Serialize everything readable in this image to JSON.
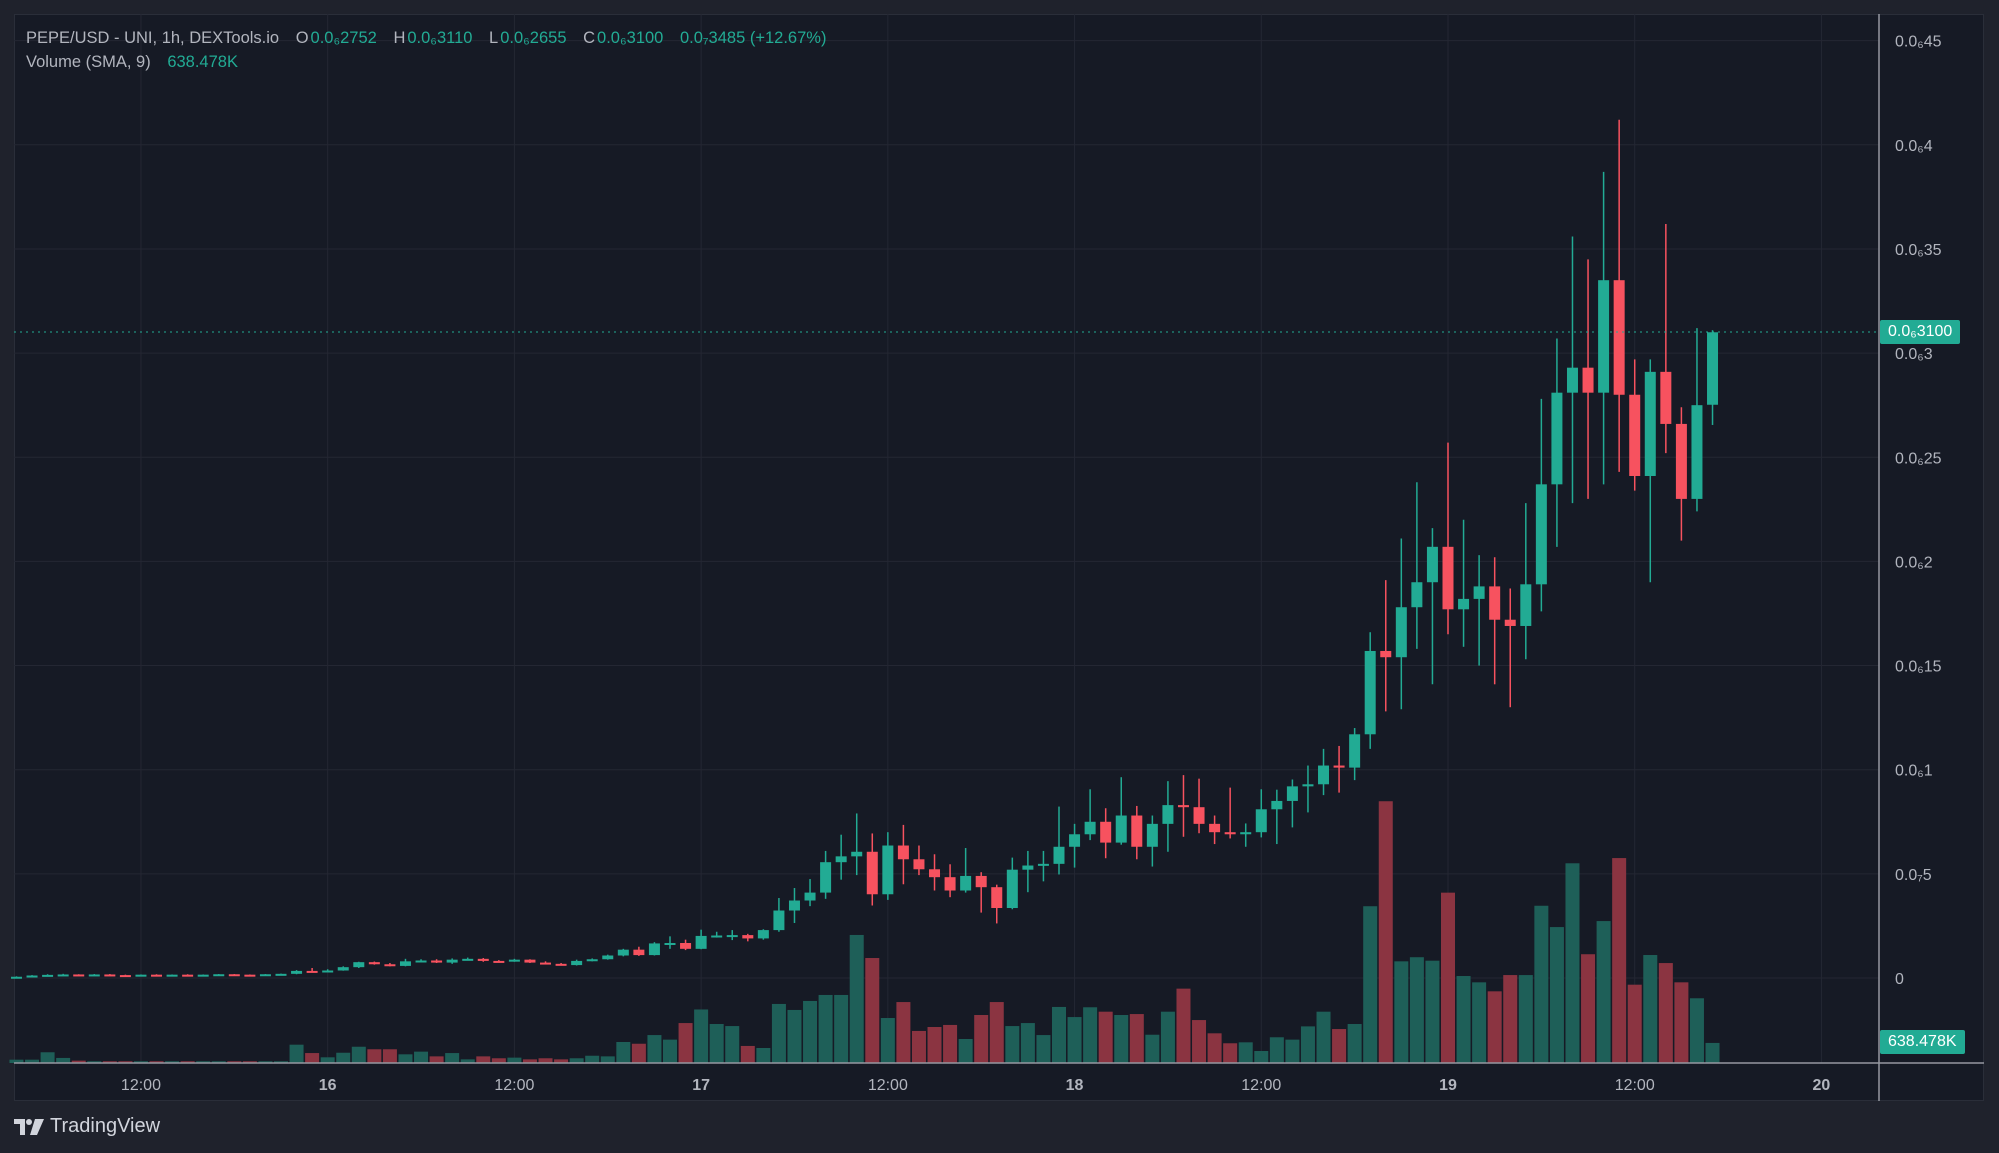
{
  "legend": {
    "symbol": "PEPE/USD - UNI, 1h, DEXTools.io",
    "open_label": "O",
    "open": "0.0₆2752",
    "high_label": "H",
    "high": "0.0₆3110",
    "low_label": "L",
    "low": "0.0₆2655",
    "close_label": "C",
    "close": "0.0₆3100",
    "change": "0.0₇3485 (+12.67%)",
    "volume_label": "Volume (SMA, 9)",
    "volume_value": "638.478K"
  },
  "last_price_tag": "0.0₆3100",
  "volume_tag": "638.478K",
  "brand": "TradingView",
  "colors": {
    "up": "#22ab94",
    "down": "#f7525f",
    "volume_up": "#1e5f58",
    "volume_down": "#8b3441",
    "grid": "#242733",
    "text": "#b2b5be"
  },
  "chart_data": {
    "type": "candlestick",
    "title": "PEPE/USD - UNI, 1h, DEXTools.io",
    "interval": "1h",
    "first_bar": "15 04:00",
    "y_ticks": [
      {
        "label": "0",
        "value": 0
      },
      {
        "label": "0.0₇5",
        "value": 5e-08
      },
      {
        "label": "0.0₆1",
        "value": 1e-07
      },
      {
        "label": "0.0₆15",
        "value": 1.5e-07
      },
      {
        "label": "0.0₆2",
        "value": 2e-07
      },
      {
        "label": "0.0₆25",
        "value": 2.5e-07
      },
      {
        "label": "0.0₆3",
        "value": 3e-07
      },
      {
        "label": "0.0₆35",
        "value": 3.5e-07
      },
      {
        "label": "0.0₆4",
        "value": 4e-07
      },
      {
        "label": "0.0₆45",
        "value": 4.5e-07
      }
    ],
    "x_ticks": [
      {
        "label": "12:00",
        "hour": 12,
        "bold": false
      },
      {
        "label": "16",
        "hour": 24,
        "bold": true
      },
      {
        "label": "12:00",
        "hour": 36,
        "bold": false
      },
      {
        "label": "17",
        "hour": 48,
        "bold": true
      },
      {
        "label": "12:00",
        "hour": 60,
        "bold": false
      },
      {
        "label": "18",
        "hour": 72,
        "bold": true
      },
      {
        "label": "12:00",
        "hour": 84,
        "bold": false
      },
      {
        "label": "19",
        "hour": 96,
        "bold": true
      },
      {
        "label": "12:00",
        "hour": 108,
        "bold": false
      },
      {
        "label": "20",
        "hour": 120,
        "bold": true
      }
    ],
    "last_price": 3.1e-07,
    "volume_sma9_k": 638.478,
    "ohlc": [
      [
        4e-10,
        8e-10,
        3e-10,
        6e-10
      ],
      [
        6e-10,
        1.4e-09,
        5e-10,
        1.2e-09
      ],
      [
        1.2e-09,
        1.8e-09,
        1.1e-09,
        1.5e-09
      ],
      [
        1.5e-09,
        2e-09,
        1.3e-09,
        1.7e-09
      ],
      [
        1.7e-09,
        1.8e-09,
        1.3e-09,
        1.4e-09
      ],
      [
        1.4e-09,
        1.9e-09,
        1.3e-09,
        1.7e-09
      ],
      [
        1.7e-09,
        1.9e-09,
        1.3e-09,
        1.4e-09
      ],
      [
        1.4e-09,
        1.6e-09,
        1.1e-09,
        1.2e-09
      ],
      [
        1.2e-09,
        1.7e-09,
        1.1e-09,
        1.6e-09
      ],
      [
        1.6e-09,
        1.8e-09,
        1.2e-09,
        1.3e-09
      ],
      [
        1.3e-09,
        1.7e-09,
        1.1e-09,
        1.6e-09
      ],
      [
        1.6e-09,
        1.8e-09,
        1.2e-09,
        1.3e-09
      ],
      [
        1.3e-09,
        1.7e-09,
        1.2e-09,
        1.6e-09
      ],
      [
        1.6e-09,
        1.9e-09,
        1.4e-09,
        1.8e-09
      ],
      [
        1.8e-09,
        1.9e-09,
        1.5e-09,
        1.6e-09
      ],
      [
        1.6e-09,
        1.7e-09,
        1.4e-09,
        1.5e-09
      ],
      [
        1.5e-09,
        1.9e-09,
        1.4e-09,
        1.8e-09
      ],
      [
        1.8e-09,
        2.1e-09,
        1.7e-09,
        2e-09
      ],
      [
        2e-09,
        3.8e-09,
        1.8e-09,
        3.4e-09
      ],
      [
        3.4e-09,
        4.8e-09,
        3.1e-09,
        3.2e-09
      ],
      [
        3.2e-09,
        4.2e-09,
        2.8e-09,
        3.6e-09
      ],
      [
        3.6e-09,
        5.6e-09,
        3.5e-09,
        5.2e-09
      ],
      [
        5.2e-09,
        7.8e-09,
        4.8e-09,
        7.6e-09
      ],
      [
        7.6e-09,
        7.9e-09,
        6.4e-09,
        6.6e-09
      ],
      [
        6.6e-09,
        7.2e-09,
        5.6e-09,
        5.8e-09
      ],
      [
        5.8e-09,
        9.2e-09,
        5.6e-09,
        8e-09
      ],
      [
        8e-09,
        9e-09,
        7.6e-09,
        8.4e-09
      ],
      [
        8.4e-09,
        9e-09,
        7.2e-09,
        7.4e-09
      ],
      [
        7.4e-09,
        9.4e-09,
        6.8e-09,
        8.8e-09
      ],
      [
        8.8e-09,
        9.8e-09,
        8.4e-09,
        9.2e-09
      ],
      [
        9.2e-09,
        9.6e-09,
        7.8e-09,
        8.2e-09
      ],
      [
        8.2e-09,
        8.6e-09,
        7.6e-09,
        8e-09
      ],
      [
        8e-09,
        9.2e-09,
        7.8e-09,
        8.8e-09
      ],
      [
        8.8e-09,
        9e-09,
        7.2e-09,
        7.4e-09
      ],
      [
        7.4e-09,
        8e-09,
        6.6e-09,
        6.8e-09
      ],
      [
        6.8e-09,
        7.2e-09,
        6e-09,
        6.2e-09
      ],
      [
        6.2e-09,
        8.8e-09,
        6e-09,
        8.2e-09
      ],
      [
        8.2e-09,
        9.4e-09,
        8e-09,
        9e-09
      ],
      [
        9e-09,
        1.12e-08,
        8.8e-09,
        1.08e-08
      ],
      [
        1.08e-08,
        1.4e-08,
        1.04e-08,
        1.36e-08
      ],
      [
        1.36e-08,
        1.5e-08,
        1.06e-08,
        1.1e-08
      ],
      [
        1.1e-08,
        1.72e-08,
        1.08e-08,
        1.66e-08
      ],
      [
        1.66e-08,
        2e-08,
        1.4e-08,
        1.68e-08
      ],
      [
        1.68e-08,
        1.84e-08,
        1.34e-08,
        1.4e-08
      ],
      [
        1.4e-08,
        2.32e-08,
        1.38e-08,
        2.02e-08
      ],
      [
        2.02e-08,
        2.22e-08,
        1.94e-08,
        2.04e-08
      ],
      [
        2.04e-08,
        2.3e-08,
        1.82e-08,
        2.06e-08
      ],
      [
        2.06e-08,
        2.12e-08,
        1.76e-08,
        1.9e-08
      ],
      [
        1.9e-08,
        2.34e-08,
        1.84e-08,
        2.3e-08
      ],
      [
        2.3e-08,
        3.84e-08,
        2.22e-08,
        3.24e-08
      ],
      [
        3.24e-08,
        4.32e-08,
        2.64e-08,
        3.72e-08
      ],
      [
        3.72e-08,
        4.75e-08,
        3.45e-08,
        4.1e-08
      ],
      [
        4.1e-08,
        6.1e-08,
        3.8e-08,
        5.56e-08
      ],
      [
        5.56e-08,
        6.88e-08,
        4.72e-08,
        5.84e-08
      ],
      [
        5.84e-08,
        7.9e-08,
        4.94e-08,
        6.06e-08
      ],
      [
        6.06e-08,
        6.94e-08,
        3.48e-08,
        4.02e-08
      ],
      [
        4.02e-08,
        7e-08,
        3.75e-08,
        6.36e-08
      ],
      [
        6.36e-08,
        7.35e-08,
        4.5e-08,
        5.7e-08
      ],
      [
        5.7e-08,
        6.36e-08,
        4.94e-08,
        5.22e-08
      ],
      [
        5.22e-08,
        5.94e-08,
        4.2e-08,
        4.84e-08
      ],
      [
        4.84e-08,
        5.46e-08,
        3.88e-08,
        4.2e-08
      ],
      [
        4.2e-08,
        6.24e-08,
        4.1e-08,
        4.9e-08
      ],
      [
        4.9e-08,
        5.08e-08,
        3.14e-08,
        4.36e-08
      ],
      [
        4.36e-08,
        4.48e-08,
        2.62e-08,
        3.36e-08
      ],
      [
        3.36e-08,
        5.78e-08,
        3.3e-08,
        5.2e-08
      ],
      [
        5.2e-08,
        6.1e-08,
        4.12e-08,
        5.4e-08
      ],
      [
        5.4e-08,
        6.1e-08,
        4.64e-08,
        5.48e-08
      ],
      [
        5.48e-08,
        8.23e-08,
        4.97e-08,
        6.3e-08
      ],
      [
        6.3e-08,
        7.4e-08,
        5.3e-08,
        6.9e-08
      ],
      [
        6.9e-08,
        9.06e-08,
        6.62e-08,
        7.5e-08
      ],
      [
        7.5e-08,
        8.15e-08,
        5.75e-08,
        6.5e-08
      ],
      [
        6.5e-08,
        9.64e-08,
        6.4e-08,
        7.8e-08
      ],
      [
        7.8e-08,
        8.26e-08,
        5.7e-08,
        6.3e-08
      ],
      [
        6.3e-08,
        7.8e-08,
        5.35e-08,
        7.4e-08
      ],
      [
        7.4e-08,
        9.45e-08,
        6.06e-08,
        8.3e-08
      ],
      [
        8.3e-08,
        9.74e-08,
        6.78e-08,
        8.2e-08
      ],
      [
        8.2e-08,
        9.57e-08,
        6.95e-08,
        7.4e-08
      ],
      [
        7.4e-08,
        7.8e-08,
        6.43e-08,
        7e-08
      ],
      [
        7e-08,
        9.14e-08,
        6.7e-08,
        6.9e-08
      ],
      [
        6.9e-08,
        7.42e-08,
        6.3e-08,
        7e-08
      ],
      [
        7e-08,
        9.06e-08,
        6.75e-08,
        8.1e-08
      ],
      [
        8.1e-08,
        9.04e-08,
        6.43e-08,
        8.5e-08
      ],
      [
        8.5e-08,
        9.53e-08,
        7.23e-08,
        9.2e-08
      ],
      [
        9.2e-08,
        1.02e-07,
        7.95e-08,
        9.3e-08
      ],
      [
        9.3e-08,
        1.1e-07,
        8.78e-08,
        1.02e-07
      ],
      [
        1.02e-07,
        1.114e-07,
        8.9e-08,
        1.01e-07
      ],
      [
        1.01e-07,
        1.2e-07,
        9.5e-08,
        1.17e-07
      ],
      [
        1.17e-07,
        1.66e-07,
        1.1e-07,
        1.57e-07
      ],
      [
        1.57e-07,
        1.91e-07,
        1.28e-07,
        1.54e-07
      ],
      [
        1.54e-07,
        2.11e-07,
        1.29e-07,
        1.78e-07
      ],
      [
        1.78e-07,
        2.38e-07,
        1.58e-07,
        1.9e-07
      ],
      [
        1.9e-07,
        2.16e-07,
        1.41e-07,
        2.07e-07
      ],
      [
        2.07e-07,
        2.57e-07,
        1.65e-07,
        1.77e-07
      ],
      [
        1.77e-07,
        2.2e-07,
        1.59e-07,
        1.82e-07
      ],
      [
        1.82e-07,
        2.03e-07,
        1.5e-07,
        1.88e-07
      ],
      [
        1.88e-07,
        2.02e-07,
        1.41e-07,
        1.72e-07
      ],
      [
        1.72e-07,
        1.87e-07,
        1.3e-07,
        1.69e-07
      ],
      [
        1.69e-07,
        2.28e-07,
        1.53e-07,
        1.89e-07
      ],
      [
        1.89e-07,
        2.78e-07,
        1.76e-07,
        2.37e-07
      ],
      [
        2.37e-07,
        3.07e-07,
        2.07e-07,
        2.81e-07
      ],
      [
        2.81e-07,
        3.56e-07,
        2.28e-07,
        2.93e-07
      ],
      [
        2.93e-07,
        3.45e-07,
        2.3e-07,
        2.81e-07
      ],
      [
        2.81e-07,
        3.87e-07,
        2.37e-07,
        3.35e-07
      ],
      [
        3.35e-07,
        4.12e-07,
        2.43e-07,
        2.8e-07
      ],
      [
        2.8e-07,
        2.97e-07,
        2.34e-07,
        2.41e-07
      ],
      [
        2.41e-07,
        2.97e-07,
        1.9e-07,
        2.91e-07
      ],
      [
        2.91e-07,
        3.62e-07,
        2.52e-07,
        2.66e-07
      ],
      [
        2.66e-07,
        2.74e-07,
        2.1e-07,
        2.3e-07
      ],
      [
        2.3e-07,
        3.12e-07,
        2.24e-07,
        2.75e-07
      ],
      [
        2.752e-07,
        3.11e-07,
        2.655e-07,
        3.1e-07
      ]
    ],
    "volumes_k": [
      21,
      21,
      68,
      32,
      15,
      11,
      11,
      11,
      11,
      11,
      11,
      11,
      11,
      11,
      11,
      11,
      11,
      11,
      116,
      63,
      36,
      65,
      103,
      87,
      87,
      55,
      72,
      42,
      63,
      23,
      42,
      30,
      34,
      23,
      30,
      23,
      30,
      46,
      42,
      133,
      122,
      177,
      148,
      253,
      339,
      247,
      234,
      108,
      95,
      374,
      336,
      393,
      431,
      431,
      811,
      665,
      285,
      386,
      203,
      228,
      241,
      152,
      304,
      386,
      234,
      253,
      177,
      355,
      291,
      353,
      325,
      304,
      310,
      179,
      325,
      471,
      272,
      188,
      125,
      131,
      76,
      163,
      148,
      232,
      325,
      215,
      247,
      993,
      1658,
      644,
      670,
      648,
      1079,
      551,
      511,
      454,
      557,
      557,
      996,
      861,
      1265,
      689,
      899,
      1298,
      496,
      684,
      633,
      511,
      410,
      127
    ]
  }
}
